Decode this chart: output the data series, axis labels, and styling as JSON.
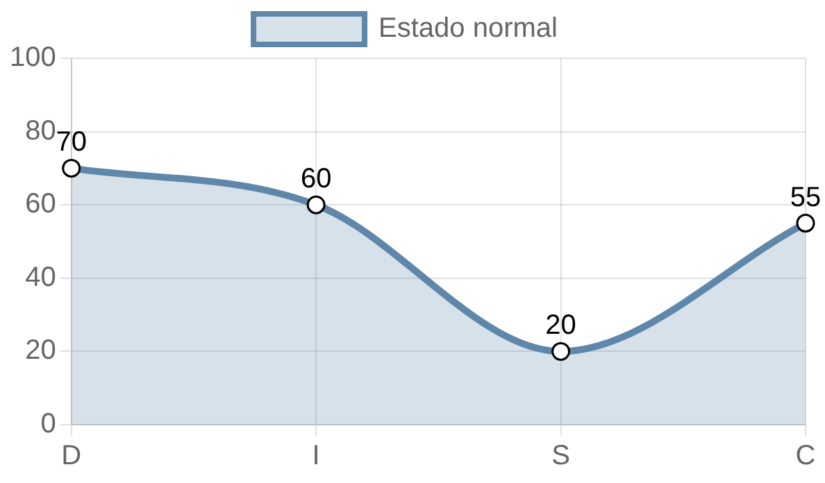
{
  "chart_data": {
    "type": "area",
    "categories": [
      "D",
      "I",
      "S",
      "C"
    ],
    "series": [
      {
        "name": "Estado normal",
        "color": "#5f87aa",
        "values": [
          70,
          60,
          20,
          55
        ]
      }
    ],
    "ylim": [
      0,
      100
    ],
    "yticks": [
      0,
      20,
      40,
      60,
      80,
      100
    ],
    "grid": true,
    "legend": "top",
    "marker": "circle",
    "data_labels": true
  }
}
